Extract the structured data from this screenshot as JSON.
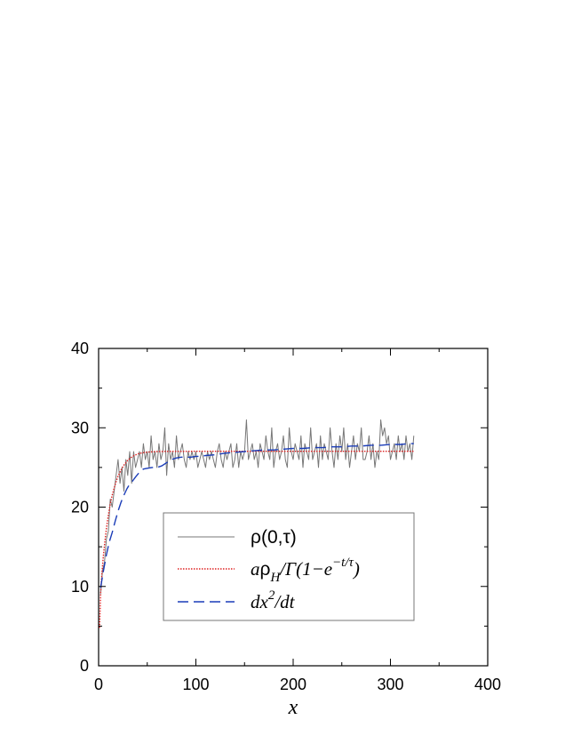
{
  "chart_data": {
    "type": "line",
    "xlabel": "x",
    "ylabel": "",
    "xlim": [
      0,
      400
    ],
    "ylim": [
      0,
      40
    ],
    "xticks": [
      "0",
      "100",
      "200",
      "300",
      "400"
    ],
    "yticks": [
      "0",
      "10",
      "20",
      "30",
      "40"
    ],
    "grid": false,
    "legend_position": "center-right",
    "legend": {
      "rho": "ρ(0,τ)",
      "fit": {
        "a": "a",
        "rho": "ρ",
        "sub": "H",
        "body": "/Γ(1−e",
        "sup": "−t/τ",
        "close": ")"
      },
      "dx": {
        "base": "dx",
        "sup": "2",
        "tail": "/dt"
      }
    },
    "series": [
      {
        "name": "ρ(0,τ)",
        "color": "#777777",
        "style": "solid",
        "x": [
          2,
          4,
          6,
          8,
          10,
          12,
          14,
          16,
          18,
          20,
          22,
          24,
          26,
          28,
          30,
          32,
          34,
          36,
          38,
          40,
          42,
          44,
          46,
          48,
          50,
          52,
          54,
          56,
          58,
          60,
          62,
          64,
          66,
          68,
          70,
          72,
          74,
          76,
          78,
          80,
          82,
          84,
          86,
          88,
          90,
          92,
          94,
          96,
          98,
          100,
          102,
          104,
          106,
          108,
          110,
          112,
          114,
          116,
          118,
          120,
          122,
          124,
          126,
          128,
          130,
          132,
          134,
          136,
          138,
          140,
          142,
          144,
          146,
          148,
          150,
          152,
          154,
          156,
          158,
          160,
          162,
          164,
          166,
          168,
          170,
          172,
          174,
          176,
          178,
          180,
          182,
          184,
          186,
          188,
          190,
          192,
          194,
          196,
          198,
          200,
          202,
          204,
          206,
          208,
          210,
          212,
          214,
          216,
          218,
          220,
          222,
          224,
          226,
          228,
          230,
          232,
          234,
          236,
          238,
          240,
          242,
          244,
          246,
          248,
          250,
          252,
          254,
          256,
          258,
          260,
          262,
          264,
          266,
          268,
          270,
          272,
          274,
          276,
          278,
          280,
          282,
          284,
          286,
          288,
          290,
          292,
          294,
          296,
          298,
          300,
          302,
          304,
          306,
          308,
          310,
          312,
          314,
          316,
          318,
          320,
          322,
          324
        ],
        "values": [
          9,
          12,
          13,
          16,
          17,
          21,
          20,
          22,
          24,
          26,
          23,
          25,
          22,
          26,
          24,
          27,
          23,
          27,
          25,
          26,
          27,
          25,
          28,
          26,
          27,
          25,
          29,
          26,
          27,
          25,
          28,
          26,
          27,
          30,
          24,
          28,
          26,
          27,
          25,
          29,
          26,
          27,
          28,
          26,
          25,
          27,
          26,
          27,
          26,
          27,
          25,
          26,
          27,
          26,
          25,
          27,
          26,
          27,
          26,
          25,
          27,
          28,
          26,
          25,
          27,
          26,
          27,
          28,
          25,
          26,
          28,
          25,
          27,
          26,
          27,
          31,
          26,
          27,
          28,
          26,
          27,
          25,
          28,
          27,
          26,
          29,
          27,
          26,
          30,
          25,
          27,
          28,
          26,
          27,
          29,
          26,
          25,
          30,
          27,
          26,
          28,
          27,
          26,
          29,
          25,
          28,
          27,
          26,
          30,
          26,
          27,
          28,
          25,
          29,
          26,
          28,
          27,
          26,
          30,
          27,
          25,
          28,
          26,
          29,
          27,
          30,
          26,
          28,
          25,
          27,
          29,
          26,
          28,
          27,
          30,
          26,
          26,
          27,
          29,
          26,
          28,
          25,
          27,
          26,
          31,
          29,
          30,
          28,
          29,
          26,
          27,
          28,
          26,
          29,
          27,
          28,
          26,
          29,
          27,
          28,
          26,
          29
        ]
      },
      {
        "name": "aρH/Γ(1−e−t/τ)",
        "color": "#dd2222",
        "style": "dotted",
        "x": [
          1,
          2,
          3,
          4,
          5,
          6,
          7,
          8,
          9,
          10,
          12,
          14,
          16,
          18,
          20,
          22,
          24,
          26,
          28,
          30,
          35,
          40,
          45,
          50,
          60,
          70,
          80,
          90,
          100,
          120,
          140,
          160,
          180,
          200,
          220,
          240,
          260,
          280,
          300,
          320,
          324
        ],
        "values": [
          4.8,
          9.0,
          11.0,
          12.6,
          14.0,
          15.2,
          16.3,
          17.3,
          18.2,
          19.0,
          20.4,
          21.5,
          22.4,
          23.2,
          23.9,
          24.4,
          24.9,
          25.3,
          25.6,
          25.9,
          26.4,
          26.7,
          26.85,
          26.93,
          27.0,
          27.02,
          27.03,
          27.03,
          27.04,
          27.04,
          27.04,
          27.04,
          27.04,
          27.04,
          27.04,
          27.04,
          27.04,
          27.04,
          27.04,
          27.04,
          27.04
        ]
      },
      {
        "name": "dx²/dt",
        "color": "#1a3cb8",
        "style": "dashed",
        "x": [
          2,
          5,
          8,
          11,
          14,
          17,
          20,
          23,
          26,
          29,
          32,
          35,
          38,
          42,
          46,
          50,
          55,
          60,
          65,
          70,
          75,
          80,
          85,
          90,
          95,
          100,
          105,
          110,
          120,
          130,
          140,
          150,
          160,
          170,
          180,
          190,
          200,
          210,
          220,
          230,
          240,
          250,
          260,
          270,
          280,
          290,
          300,
          310,
          320,
          324
        ],
        "values": [
          9.8,
          12.0,
          14.0,
          15.6,
          16.8,
          18.2,
          19.5,
          20.6,
          21.5,
          22.3,
          22.9,
          23.3,
          23.8,
          24.4,
          24.8,
          24.9,
          25.0,
          25.0,
          25.2,
          25.6,
          26.0,
          26.2,
          26.3,
          26.3,
          26.3,
          26.4,
          26.4,
          26.5,
          26.6,
          26.8,
          26.9,
          27.0,
          27.1,
          27.2,
          27.2,
          27.3,
          27.4,
          27.4,
          27.5,
          27.5,
          27.6,
          27.6,
          27.7,
          27.7,
          27.8,
          27.8,
          27.9,
          27.9,
          28.0,
          28.0
        ]
      }
    ]
  }
}
